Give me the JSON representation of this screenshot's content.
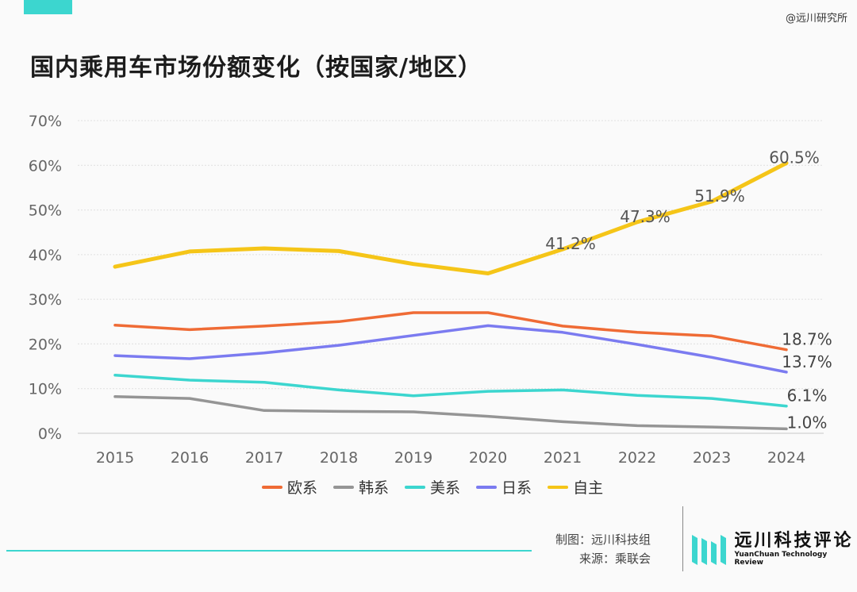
{
  "watermark": "@远川研究所",
  "title": "国内乘用车市场份额变化（按国家/地区）",
  "credits": {
    "made_by": "制图：远川科技组",
    "source": "来源：乘联会"
  },
  "logo": {
    "name": "远川科技评论",
    "subtitle": "YuanChuan Technology Review"
  },
  "colors": {
    "accent": "#3cd6cf"
  },
  "chart_data": {
    "type": "line",
    "title": "国内乘用车市场份额变化（按国家/地区）",
    "x": [
      "2015",
      "2016",
      "2017",
      "2018",
      "2019",
      "2020",
      "2021",
      "2022",
      "2023",
      "2024"
    ],
    "ylim": [
      0,
      70
    ],
    "yticks": [
      "0%",
      "10%",
      "20%",
      "30%",
      "40%",
      "50%",
      "60%",
      "70%"
    ],
    "grid": true,
    "legend_position": "bottom",
    "series": [
      {
        "name": "欧系",
        "color": "#ef6b35",
        "values": [
          24.2,
          23.2,
          24.0,
          25.0,
          27.0,
          27.0,
          24.0,
          22.6,
          21.8,
          18.7
        ],
        "end_label": "18.7%"
      },
      {
        "name": "韩系",
        "color": "#959595",
        "values": [
          8.2,
          7.8,
          5.1,
          4.9,
          4.8,
          3.8,
          2.6,
          1.7,
          1.4,
          1.0
        ],
        "end_label": "1.0%"
      },
      {
        "name": "美系",
        "color": "#3cd6cf",
        "values": [
          13.0,
          11.9,
          11.4,
          9.7,
          8.4,
          9.4,
          9.7,
          8.5,
          7.8,
          6.1
        ],
        "end_label": "6.1%"
      },
      {
        "name": "日系",
        "color": "#7b7bf0",
        "values": [
          17.4,
          16.7,
          18.0,
          19.7,
          21.9,
          24.1,
          22.6,
          19.9,
          17.0,
          13.7
        ],
        "end_label": "13.7%"
      },
      {
        "name": "自主",
        "color": "#f5c518",
        "values": [
          37.3,
          40.7,
          41.4,
          40.8,
          37.9,
          35.8,
          41.2,
          47.3,
          51.9,
          60.5
        ],
        "point_labels": [
          "",
          "",
          "",
          "",
          "",
          "",
          "41.2%",
          "47.3%",
          "51.9%",
          "60.5%"
        ]
      }
    ]
  }
}
